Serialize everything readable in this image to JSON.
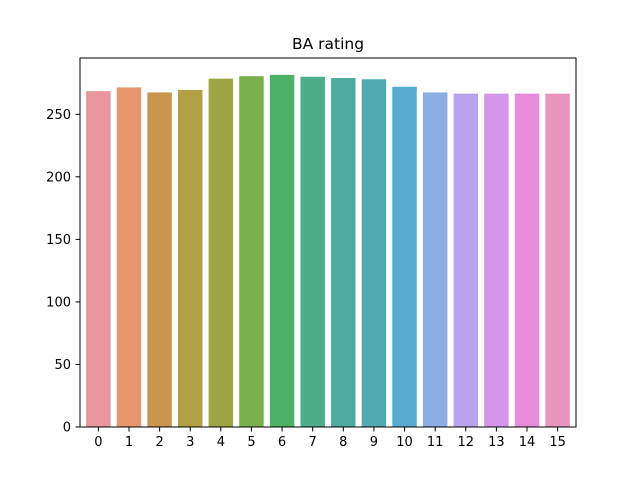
{
  "chart_data": {
    "type": "bar",
    "title": "BA rating",
    "xlabel": "",
    "ylabel": "",
    "categories": [
      "0",
      "1",
      "2",
      "3",
      "4",
      "5",
      "6",
      "7",
      "8",
      "9",
      "10",
      "11",
      "12",
      "13",
      "14",
      "15"
    ],
    "values": [
      268.5,
      271.5,
      267.5,
      269.5,
      278.5,
      280.5,
      281.5,
      280.0,
      279.0,
      278.0,
      272.0,
      267.5,
      266.5,
      266.5,
      266.5,
      266.5
    ],
    "ylim": [
      0,
      295
    ],
    "yticks": [
      0,
      50,
      100,
      150,
      200,
      250
    ],
    "grid": false,
    "colors": [
      "#e8969c",
      "#e7976f",
      "#c99650",
      "#b3a044",
      "#9ca544",
      "#7bb14d",
      "#4fb06a",
      "#4cae8a",
      "#4dab9f",
      "#50aab2",
      "#58abd0",
      "#8baee5",
      "#b8a3ec",
      "#d396e9",
      "#e78ad8",
      "#e894bc"
    ]
  }
}
